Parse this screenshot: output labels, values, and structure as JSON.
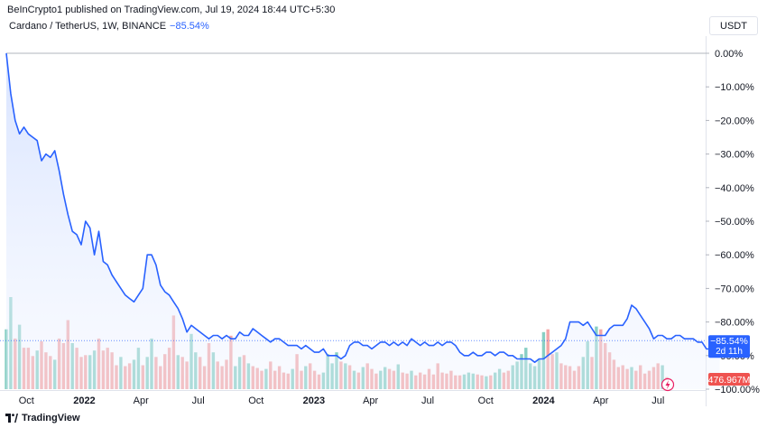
{
  "header": {
    "publisher": "BeInCrypto1 published on TradingView.com, Jul 19, 2024 18:44 UTC+5:30",
    "symbol": "Cardano / TetherUS, 1W, BINANCE",
    "change": "−85.54%",
    "currency_button": "USDT"
  },
  "footer": {
    "brand": "TradingView"
  },
  "colors": {
    "line": "#2962ff",
    "area_top": "#d6e2ff",
    "up_volume": "#88cfc4",
    "down_volume": "#f4a6a6",
    "price_tag": "#2962ff",
    "volume_tag": "#ef5350"
  },
  "chart_data": {
    "type": "line",
    "y_axis": {
      "scale": "percentage",
      "ticks": [
        "0.00%",
        "−10.00%",
        "−20.00%",
        "−30.00%",
        "−40.00%",
        "−50.00%",
        "−60.00%",
        "−70.00%",
        "−80.00%",
        "−90.00%",
        "−100.00%"
      ],
      "ylim": [
        -100,
        0
      ],
      "position": "right"
    },
    "x_axis": {
      "ticks": [
        {
          "label": "Oct",
          "date": "2021-10-01",
          "bold": false
        },
        {
          "label": "2022",
          "date": "2022-01-01",
          "bold": true
        },
        {
          "label": "Apr",
          "date": "2022-04-01",
          "bold": false
        },
        {
          "label": "Jul",
          "date": "2022-07-01",
          "bold": false
        },
        {
          "label": "Oct",
          "date": "2022-10-01",
          "bold": false
        },
        {
          "label": "2023",
          "date": "2023-01-01",
          "bold": true
        },
        {
          "label": "Apr",
          "date": "2023-04-01",
          "bold": false
        },
        {
          "label": "Jul",
          "date": "2023-07-01",
          "bold": false
        },
        {
          "label": "Oct",
          "date": "2023-10-01",
          "bold": false
        },
        {
          "label": "2024",
          "date": "2024-01-01",
          "bold": true
        },
        {
          "label": "Apr",
          "date": "2024-04-01",
          "bold": false
        },
        {
          "label": "Jul",
          "date": "2024-07-01",
          "bold": false
        }
      ]
    },
    "series": [
      {
        "x_start": "2021-08-30",
        "interval": "1W",
        "values": [
          0,
          -12,
          -20,
          -24,
          -22,
          -24,
          -25,
          -26,
          -32,
          -30,
          -31,
          -29,
          -35,
          -42,
          -48,
          -53,
          -54,
          -57,
          -50,
          -52,
          -60,
          -53,
          -62,
          -63,
          -66,
          -68,
          -70,
          -72,
          -73,
          -74,
          -72,
          -70,
          -60,
          -60,
          -63,
          -69,
          -71,
          -72,
          -74,
          -76,
          -79,
          -83,
          -81,
          -82,
          -83,
          -84,
          -85,
          -84,
          -84,
          -85,
          -84,
          -85,
          -85,
          -83,
          -84,
          -84,
          -82,
          -83,
          -84,
          -85,
          -86,
          -85,
          -85,
          -86,
          -87,
          -87,
          -87,
          -88,
          -87,
          -88,
          -89,
          -89,
          -88,
          -90,
          -90,
          -90,
          -91,
          -90,
          -87,
          -86,
          -86,
          -87,
          -87,
          -88,
          -87,
          -86,
          -86,
          -87,
          -86,
          -87,
          -86,
          -87,
          -85,
          -86,
          -87,
          -86,
          -87,
          -87,
          -86,
          -87,
          -86,
          -86,
          -87,
          -89,
          -90,
          -90,
          -89,
          -90,
          -90,
          -89,
          -89,
          -90,
          -89,
          -89,
          -90,
          -90,
          -91,
          -91,
          -91,
          -91,
          -92,
          -91,
          -91,
          -90,
          -89,
          -88,
          -87,
          -85,
          -80,
          -80,
          -80,
          -81,
          -80,
          -82,
          -84,
          -84,
          -84,
          -82,
          -81,
          -81,
          -81,
          -79,
          -75,
          -76,
          -78,
          -80,
          -82,
          -85,
          -84,
          -84,
          -85,
          -85,
          -84,
          -84,
          -85,
          -85,
          -85,
          -86,
          -86,
          -88,
          -88,
          -85.54,
          -85.54
        ]
      }
    ],
    "volume": {
      "label": "476.967M",
      "up_color": "#88cfc4",
      "down_color": "#f4a6a6",
      "bars": [
        {
          "v": 6.5,
          "up": true
        },
        {
          "v": 10,
          "up": true
        },
        {
          "v": 5.5,
          "up": false
        },
        {
          "v": 7,
          "up": true
        },
        {
          "v": 4.5,
          "up": false
        },
        {
          "v": 4.5,
          "up": false
        },
        {
          "v": 3.6,
          "up": false
        },
        {
          "v": 4.2,
          "up": true
        },
        {
          "v": 5.2,
          "up": false
        },
        {
          "v": 4,
          "up": false
        },
        {
          "v": 3.6,
          "up": false
        },
        {
          "v": 3.2,
          "up": true
        },
        {
          "v": 5.5,
          "up": false
        },
        {
          "v": 5,
          "up": false
        },
        {
          "v": 7.5,
          "up": false
        },
        {
          "v": 5,
          "up": true
        },
        {
          "v": 4.5,
          "up": false
        },
        {
          "v": 3.5,
          "up": false
        },
        {
          "v": 3.7,
          "up": false
        },
        {
          "v": 3.7,
          "up": true
        },
        {
          "v": 4.2,
          "up": true
        },
        {
          "v": 5.5,
          "up": false
        },
        {
          "v": 4.2,
          "up": false
        },
        {
          "v": 4.5,
          "up": false
        },
        {
          "v": 4,
          "up": false
        },
        {
          "v": 2.6,
          "up": false
        },
        {
          "v": 3.5,
          "up": true
        },
        {
          "v": 2.5,
          "up": false
        },
        {
          "v": 2.8,
          "up": false
        },
        {
          "v": 3.2,
          "up": true
        },
        {
          "v": 4.5,
          "up": true
        },
        {
          "v": 2.6,
          "up": false
        },
        {
          "v": 3.5,
          "up": true
        },
        {
          "v": 5.5,
          "up": true
        },
        {
          "v": 3.5,
          "up": false
        },
        {
          "v": 2.5,
          "up": false
        },
        {
          "v": 3.8,
          "up": false
        },
        {
          "v": 4.5,
          "up": false
        },
        {
          "v": 8,
          "up": false
        },
        {
          "v": 3.7,
          "up": true
        },
        {
          "v": 3.5,
          "up": false
        },
        {
          "v": 3,
          "up": false
        },
        {
          "v": 6,
          "up": true
        },
        {
          "v": 4,
          "up": true
        },
        {
          "v": 3.5,
          "up": false
        },
        {
          "v": 2.5,
          "up": false
        },
        {
          "v": 5,
          "up": false
        },
        {
          "v": 4,
          "up": true
        },
        {
          "v": 3,
          "up": false
        },
        {
          "v": 2.5,
          "up": false
        },
        {
          "v": 3.2,
          "up": false
        },
        {
          "v": 5.8,
          "up": false
        },
        {
          "v": 2.5,
          "up": true
        },
        {
          "v": 3.5,
          "up": true
        },
        {
          "v": 3.7,
          "up": false
        },
        {
          "v": 2.8,
          "up": true
        },
        {
          "v": 2.5,
          "up": false
        },
        {
          "v": 2.3,
          "up": false
        },
        {
          "v": 2,
          "up": false
        },
        {
          "v": 2.2,
          "up": true
        },
        {
          "v": 3,
          "up": false
        },
        {
          "v": 2,
          "up": false
        },
        {
          "v": 2.5,
          "up": false
        },
        {
          "v": 1.8,
          "up": false
        },
        {
          "v": 1.7,
          "up": false
        },
        {
          "v": 2.2,
          "up": true
        },
        {
          "v": 3.8,
          "up": false
        },
        {
          "v": 2,
          "up": false
        },
        {
          "v": 2.5,
          "up": true
        },
        {
          "v": 2.8,
          "up": false
        },
        {
          "v": 2,
          "up": false
        },
        {
          "v": 1.6,
          "up": false
        },
        {
          "v": 1.8,
          "up": true
        },
        {
          "v": 3.8,
          "up": true
        },
        {
          "v": 2.8,
          "up": true
        },
        {
          "v": 4,
          "up": true
        },
        {
          "v": 3,
          "up": false
        },
        {
          "v": 2.8,
          "up": true
        },
        {
          "v": 2.6,
          "up": false
        },
        {
          "v": 2,
          "up": true
        },
        {
          "v": 1.8,
          "up": false
        },
        {
          "v": 2.4,
          "up": true
        },
        {
          "v": 2.8,
          "up": false
        },
        {
          "v": 2.2,
          "up": false
        },
        {
          "v": 1.7,
          "up": false
        },
        {
          "v": 2,
          "up": true
        },
        {
          "v": 2.4,
          "up": true
        },
        {
          "v": 2.2,
          "up": false
        },
        {
          "v": 2,
          "up": false
        },
        {
          "v": 2.7,
          "up": true
        },
        {
          "v": 1.8,
          "up": false
        },
        {
          "v": 1.7,
          "up": false
        },
        {
          "v": 2,
          "up": true
        },
        {
          "v": 1.5,
          "up": false
        },
        {
          "v": 1.8,
          "up": false
        },
        {
          "v": 1.6,
          "up": false
        },
        {
          "v": 2.2,
          "up": false
        },
        {
          "v": 1.6,
          "up": false
        },
        {
          "v": 2.8,
          "up": false
        },
        {
          "v": 1.8,
          "up": false
        },
        {
          "v": 1.7,
          "up": false
        },
        {
          "v": 2,
          "up": false
        },
        {
          "v": 1.5,
          "up": false
        },
        {
          "v": 1.5,
          "up": false
        },
        {
          "v": 1.6,
          "up": true
        },
        {
          "v": 1.8,
          "up": true
        },
        {
          "v": 1.7,
          "up": true
        },
        {
          "v": 1.6,
          "up": false
        },
        {
          "v": 1.5,
          "up": false
        },
        {
          "v": 1.4,
          "up": true
        },
        {
          "v": 1.5,
          "up": false
        },
        {
          "v": 1.8,
          "up": true
        },
        {
          "v": 2.2,
          "up": true
        },
        {
          "v": 1.8,
          "up": false
        },
        {
          "v": 2,
          "up": false
        },
        {
          "v": 2.6,
          "up": true
        },
        {
          "v": 3,
          "up": true
        },
        {
          "v": 3.8,
          "up": true
        },
        {
          "v": 4.5,
          "up": true
        },
        {
          "v": 2.8,
          "up": true
        },
        {
          "v": 2.5,
          "up": true
        },
        {
          "v": 3.3,
          "up": true
        },
        {
          "v": 6.2,
          "up": true
        },
        {
          "v": 6.5,
          "up": false
        },
        {
          "v": 3.8,
          "up": false
        },
        {
          "v": 4,
          "up": true
        },
        {
          "v": 2.8,
          "up": false
        },
        {
          "v": 2.6,
          "up": false
        },
        {
          "v": 2.5,
          "up": false
        },
        {
          "v": 2,
          "up": false
        },
        {
          "v": 2.5,
          "up": false
        },
        {
          "v": 3.5,
          "up": true
        },
        {
          "v": 5.2,
          "up": true
        },
        {
          "v": 3.5,
          "up": false
        },
        {
          "v": 6.8,
          "up": true
        },
        {
          "v": 6.5,
          "up": false
        },
        {
          "v": 5,
          "up": false
        },
        {
          "v": 4,
          "up": false
        },
        {
          "v": 3.2,
          "up": false
        },
        {
          "v": 2.4,
          "up": false
        },
        {
          "v": 2.6,
          "up": false
        },
        {
          "v": 2.2,
          "up": false
        },
        {
          "v": 2.4,
          "up": true
        },
        {
          "v": 2,
          "up": false
        },
        {
          "v": 2.6,
          "up": false
        },
        {
          "v": 1.7,
          "up": false
        },
        {
          "v": 2,
          "up": false
        },
        {
          "v": 2.4,
          "up": false
        },
        {
          "v": 2.8,
          "up": false
        },
        {
          "v": 2.6,
          "up": true
        },
        {
          "v": 1.3,
          "up": false
        }
      ]
    },
    "last_value_label": "−85.54%",
    "countdown_label": "2d 11h"
  }
}
